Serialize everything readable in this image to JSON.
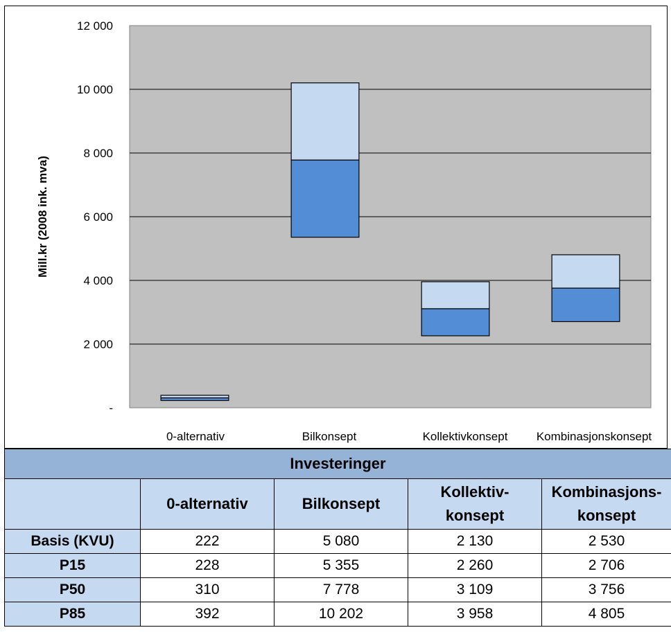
{
  "colors": {
    "plot_bg": "#c0c0c0",
    "upper_box": "#c5d9f1",
    "lower_box": "#538dd5",
    "table_title_bg": "#95b3d7",
    "table_header_bg": "#c5d9f1"
  },
  "chart_data": {
    "type": "bar",
    "subtype": "floating-range",
    "ylabel": "Mill.kr (2008 ink. mva)",
    "ylim": [
      0,
      12000
    ],
    "yticks": [
      {
        "value": 0,
        "label": "-"
      },
      {
        "value": 2000,
        "label": "2 000"
      },
      {
        "value": 4000,
        "label": "4 000"
      },
      {
        "value": 6000,
        "label": "6 000"
      },
      {
        "value": 8000,
        "label": "8 000"
      },
      {
        "value": 10000,
        "label": "10 000"
      },
      {
        "value": 12000,
        "label": "12 000"
      }
    ],
    "grid": true,
    "categories": [
      "0-alternativ",
      "Bilkonsept",
      "Kollektivkonsept",
      "Kombinasjonskonsept"
    ],
    "p15": [
      228,
      5355,
      2260,
      2706
    ],
    "p50": [
      310,
      7778,
      3109,
      3756
    ],
    "p85": [
      392,
      10202,
      3958,
      4805
    ]
  },
  "table": {
    "title": "Investeringer",
    "headers": [
      {
        "line1": "0-alternativ",
        "line2": ""
      },
      {
        "line1": "Bilkonsept",
        "line2": ""
      },
      {
        "line1": "Kollektiv-",
        "line2": "konsept"
      },
      {
        "line1": "Kombinasjons-",
        "line2": "konsept"
      }
    ],
    "rows": [
      {
        "label": "Basis (KVU)",
        "values": [
          "222",
          "5 080",
          "2 130",
          "2 530"
        ]
      },
      {
        "label": "P15",
        "values": [
          "228",
          "5 355",
          "2 260",
          "2 706"
        ]
      },
      {
        "label": "P50",
        "values": [
          "310",
          "7 778",
          "3 109",
          "3 756"
        ]
      },
      {
        "label": "P85",
        "values": [
          "392",
          "10 202",
          "3 958",
          "4 805"
        ]
      }
    ]
  }
}
